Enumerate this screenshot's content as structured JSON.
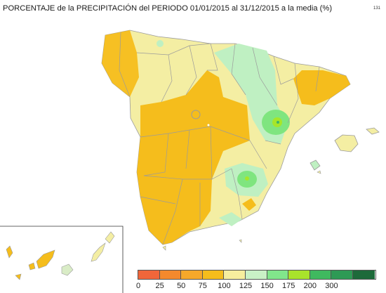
{
  "header": {
    "title": "PORCENTAJE de la PRECIPITACIÓN del PERIODO 01/01/2015 al 31/12/2015 a la media (%)",
    "code": "131"
  },
  "map": {
    "colors": {
      "base_yellow": "#f4eea3",
      "orange": "#f5bd1c",
      "light_green": "#bff0c2",
      "green": "#7fe57f",
      "lime": "#a6e62a",
      "green_dark": "#3cb56b",
      "border": "#9b9b9b"
    }
  },
  "legend": {
    "labels": [
      "0",
      "25",
      "50",
      "75",
      "100",
      "125",
      "150",
      "175",
      "200",
      "300"
    ],
    "colors": [
      "#f0663a",
      "#f4892d",
      "#f6a82a",
      "#f5bd1c",
      "#f7ee9e",
      "#c9f1c6",
      "#81e68b",
      "#a9e32b",
      "#3fb95f",
      "#2e9a55",
      "#1d6a3a"
    ]
  }
}
